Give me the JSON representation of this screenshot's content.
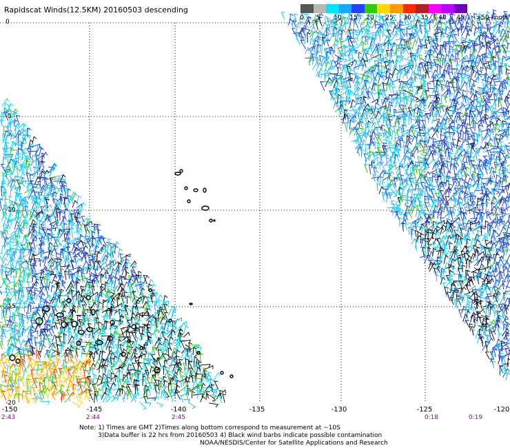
{
  "title": "Rapidscat Winds(12.5KM) 20160503 descending",
  "colorbar": {
    "labels": [
      "0",
      "5",
      "10",
      "15",
      "20",
      "25",
      "30",
      "35",
      "40",
      "45",
      ">50 knots"
    ],
    "colors": [
      "#555555",
      "#b8b8b8",
      "#00e5ff",
      "#17a8ff",
      "#2244ff",
      "#33cc00",
      "#ffd800",
      "#ff9a00",
      "#ff2a00",
      "#b02222",
      "#ff00ff",
      "#bb00ff",
      "#7000c0",
      "#ffffff"
    ]
  },
  "axes": {
    "lat_labels": [
      "0",
      "-5",
      "-10",
      "-15",
      "-20"
    ],
    "lon_labels": [
      "-150",
      "-145",
      "-140",
      "-135",
      "-130",
      "-125",
      "-120"
    ]
  },
  "time_labels": [
    "2:43",
    "2:44",
    "2:45",
    "0:18",
    "0:19"
  ],
  "notes": {
    "line1": "Note: 1) Times are GMT 2)Times along bottom correspond to measurement at ~10S",
    "line2": "3)Data buffer is 22 hrs from 20160503 4) Black wind barbs indicate possible contamination",
    "line3": "NOAA/NESDIS/Center for Satellite Applications and Research"
  },
  "swath_colors": {
    "black": "#111111",
    "cyan": "#00d8ff",
    "light_blue": "#33aaff",
    "blue": "#1f3fd8",
    "green": "#2cc400",
    "yellow": "#ffd200",
    "orange": "#ff9100",
    "red": "#ff3300"
  }
}
